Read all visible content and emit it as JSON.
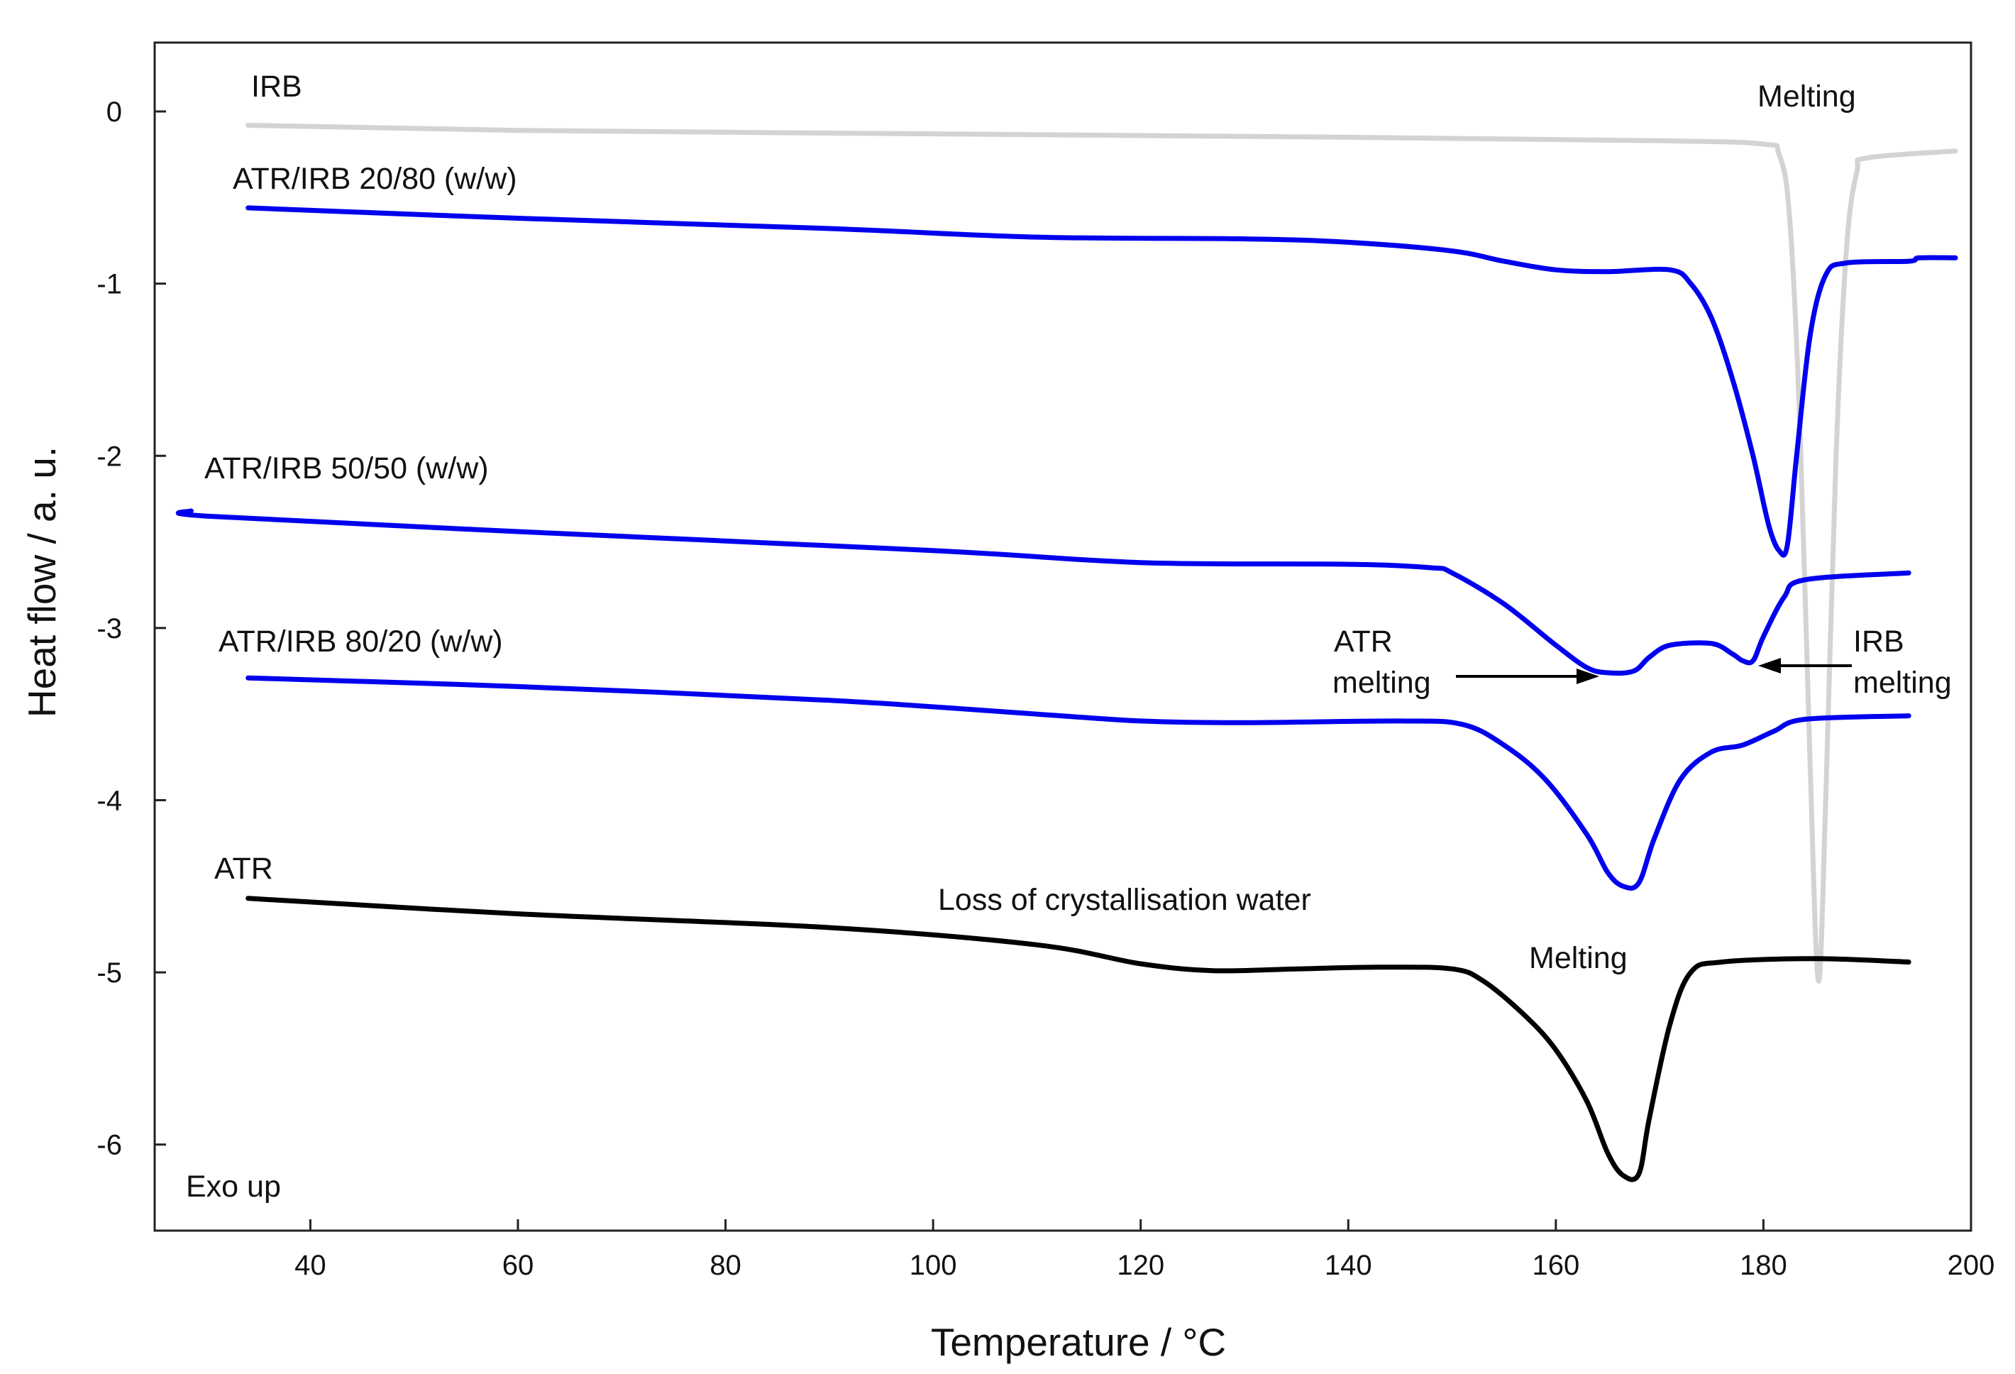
{
  "chart_data": {
    "type": "line",
    "title": "",
    "xlabel": "Temperature / °C",
    "ylabel": "Heat flow / a. u.",
    "xlim": [
      25,
      200
    ],
    "ylim": [
      -6.5,
      0.4
    ],
    "x_ticks": [
      40,
      60,
      80,
      100,
      120,
      140,
      160,
      180,
      200
    ],
    "y_ticks": [
      0,
      -1,
      -2,
      -3,
      -4,
      -5,
      -6
    ],
    "grid": false,
    "series": [
      {
        "name": "IRB",
        "color": "#d3d3d3",
        "points": [
          [
            34,
            -0.08
          ],
          [
            60,
            -0.11
          ],
          [
            100,
            -0.13
          ],
          [
            140,
            -0.15
          ],
          [
            170,
            -0.17
          ],
          [
            180,
            -0.19
          ],
          [
            181.5,
            -0.25
          ],
          [
            182.5,
            -0.6
          ],
          [
            183.5,
            -1.8
          ],
          [
            184.5,
            -3.8
          ],
          [
            185.3,
            -5.05
          ],
          [
            186,
            -4.0
          ],
          [
            187,
            -2.0
          ],
          [
            188,
            -0.8
          ],
          [
            189,
            -0.35
          ],
          [
            190,
            -0.27
          ],
          [
            198.5,
            -0.23
          ]
        ]
      },
      {
        "name": "ATR/IRB 20/80 (w/w)",
        "color": "#0000ee",
        "points": [
          [
            34,
            -0.56
          ],
          [
            60,
            -0.62
          ],
          [
            90,
            -0.68
          ],
          [
            110,
            -0.73
          ],
          [
            130,
            -0.74
          ],
          [
            140,
            -0.76
          ],
          [
            150,
            -0.81
          ],
          [
            155,
            -0.87
          ],
          [
            160,
            -0.92
          ],
          [
            165,
            -0.93
          ],
          [
            171,
            -0.92
          ],
          [
            173,
            -1.0
          ],
          [
            175,
            -1.2
          ],
          [
            177,
            -1.55
          ],
          [
            179,
            -2.0
          ],
          [
            180.5,
            -2.4
          ],
          [
            181.5,
            -2.55
          ],
          [
            182.3,
            -2.52
          ],
          [
            183.2,
            -2.0
          ],
          [
            184.5,
            -1.3
          ],
          [
            186,
            -0.95
          ],
          [
            188,
            -0.88
          ],
          [
            194,
            -0.87
          ],
          [
            195,
            -0.85
          ],
          [
            198.5,
            -0.85
          ]
        ]
      },
      {
        "name": "ATR/IRB 50/50 (w/w)",
        "color": "#0000ee",
        "points": [
          [
            28.5,
            -2.32
          ],
          [
            30,
            -2.35
          ],
          [
            60,
            -2.44
          ],
          [
            100,
            -2.55
          ],
          [
            120,
            -2.62
          ],
          [
            140,
            -2.63
          ],
          [
            148,
            -2.65
          ],
          [
            150,
            -2.68
          ],
          [
            155,
            -2.86
          ],
          [
            160,
            -3.1
          ],
          [
            163,
            -3.23
          ],
          [
            165,
            -3.26
          ],
          [
            167.5,
            -3.25
          ],
          [
            169,
            -3.17
          ],
          [
            171,
            -3.1
          ],
          [
            175,
            -3.09
          ],
          [
            177,
            -3.15
          ],
          [
            178,
            -3.19
          ],
          [
            179,
            -3.19
          ],
          [
            180,
            -3.05
          ],
          [
            182,
            -2.82
          ],
          [
            184,
            -2.72
          ],
          [
            194,
            -2.68
          ]
        ]
      },
      {
        "name": "ATR/IRB 80/20 (w/w)",
        "color": "#0000ee",
        "points": [
          [
            34,
            -3.29
          ],
          [
            60,
            -3.34
          ],
          [
            90,
            -3.42
          ],
          [
            110,
            -3.5
          ],
          [
            120,
            -3.54
          ],
          [
            130,
            -3.55
          ],
          [
            145,
            -3.54
          ],
          [
            151,
            -3.56
          ],
          [
            155,
            -3.68
          ],
          [
            159,
            -3.88
          ],
          [
            163,
            -4.2
          ],
          [
            165,
            -4.42
          ],
          [
            166.5,
            -4.5
          ],
          [
            168,
            -4.48
          ],
          [
            169.5,
            -4.22
          ],
          [
            172,
            -3.88
          ],
          [
            175,
            -3.72
          ],
          [
            178,
            -3.68
          ],
          [
            181,
            -3.6
          ],
          [
            184,
            -3.53
          ],
          [
            194,
            -3.51
          ]
        ]
      },
      {
        "name": "ATR",
        "color": "#000000",
        "points": [
          [
            34,
            -4.57
          ],
          [
            60,
            -4.66
          ],
          [
            90,
            -4.74
          ],
          [
            110,
            -4.84
          ],
          [
            120,
            -4.95
          ],
          [
            127,
            -4.99
          ],
          [
            135,
            -4.98
          ],
          [
            143,
            -4.97
          ],
          [
            150,
            -4.98
          ],
          [
            153,
            -5.05
          ],
          [
            157,
            -5.25
          ],
          [
            160,
            -5.45
          ],
          [
            163,
            -5.75
          ],
          [
            165,
            -6.05
          ],
          [
            166.5,
            -6.18
          ],
          [
            168,
            -6.17
          ],
          [
            169,
            -5.85
          ],
          [
            171,
            -5.3
          ],
          [
            173,
            -5.0
          ],
          [
            176,
            -4.94
          ],
          [
            185,
            -4.92
          ],
          [
            194,
            -4.94
          ]
        ]
      }
    ],
    "annotations": {
      "irb": "IRB",
      "melting_top": "Melting",
      "atr_irb_2080": "ATR/IRB 20/80 (w/w)",
      "atr_irb_5050": "ATR/IRB 50/50 (w/w)",
      "atr_irb_8020": "ATR/IRB 80/20 (w/w)",
      "atr_melting_1": "ATR",
      "atr_melting_2": "melting",
      "irb_melting_1": "IRB",
      "irb_melting_2": "melting",
      "atr": "ATR",
      "loss_water": "Loss of crystallisation water",
      "melting_bottom": "Melting",
      "exo_up": "Exo up"
    }
  }
}
